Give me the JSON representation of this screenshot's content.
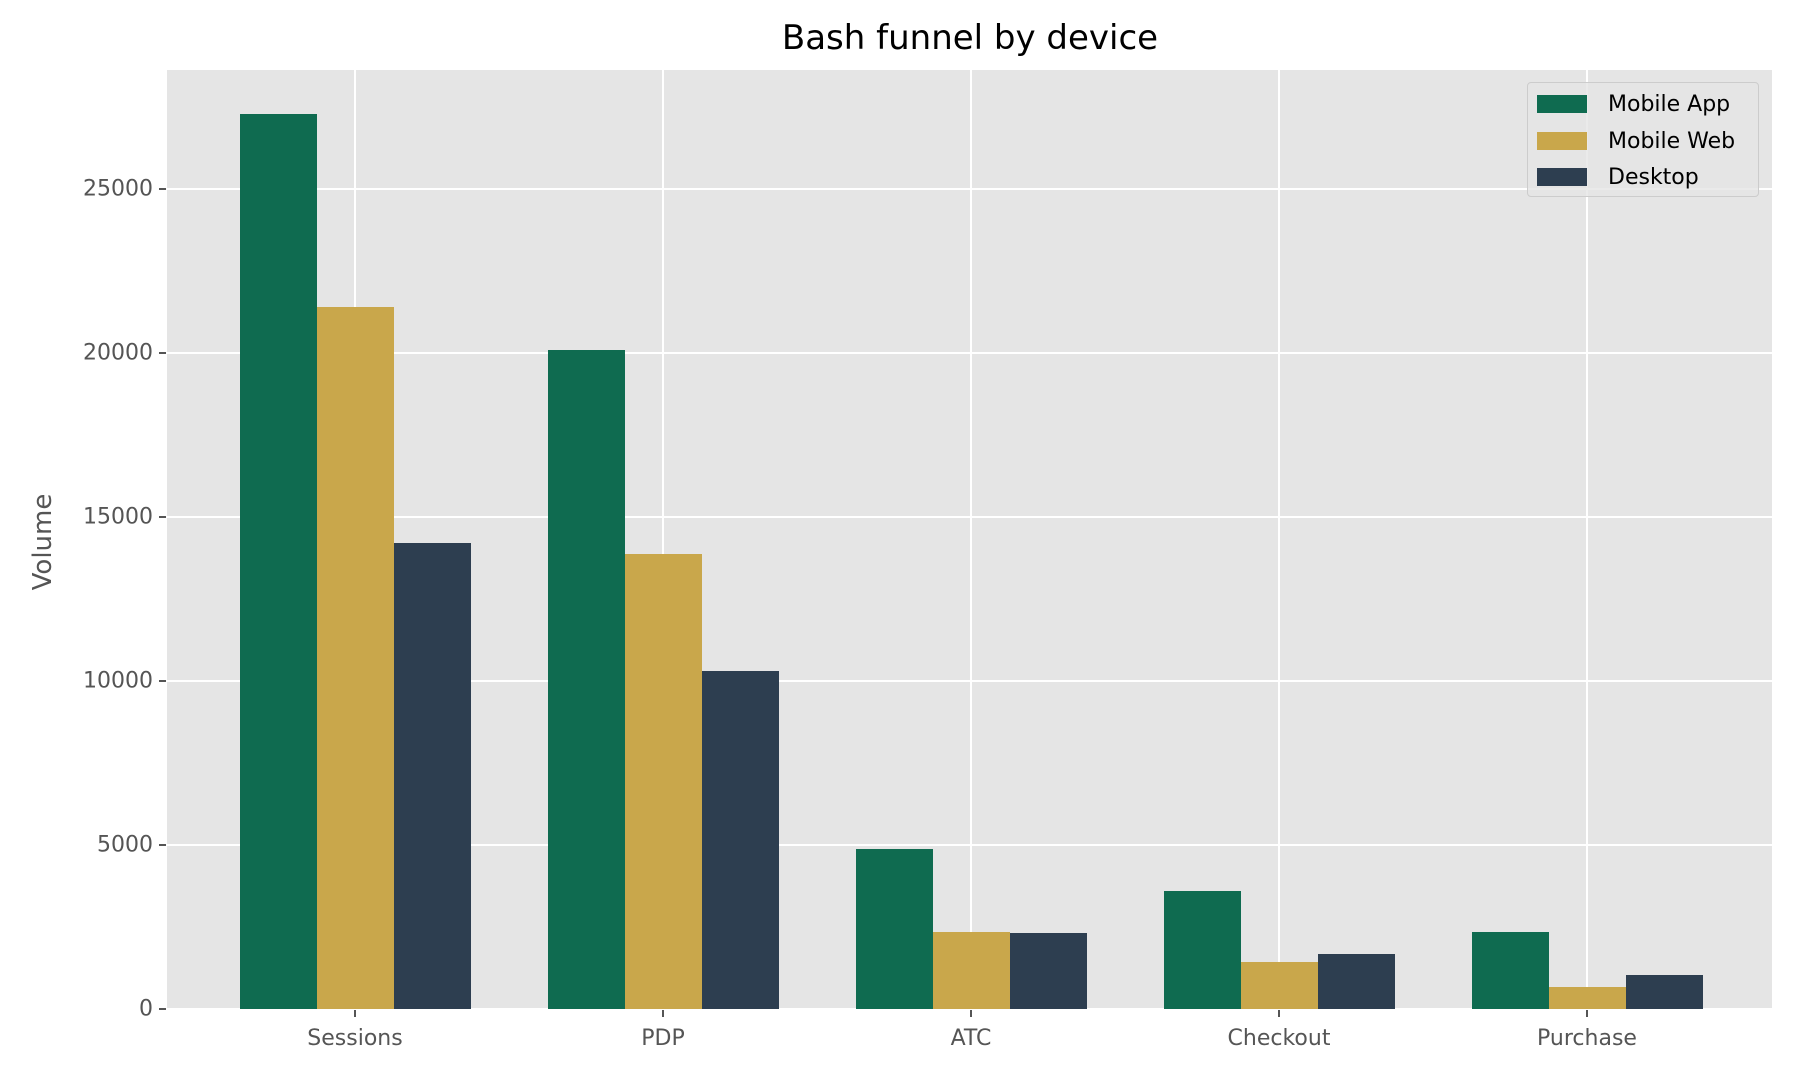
{
  "chart_data": {
    "type": "bar",
    "title": "Bash funnel by device",
    "xlabel": "",
    "ylabel": "Volume",
    "categories": [
      "Sessions",
      "PDP",
      "ATC",
      "Checkout",
      "Purchase"
    ],
    "series": [
      {
        "name": "Mobile App",
        "color": "#0f6b50",
        "values": [
          27290,
          20090,
          4880,
          3600,
          2350
        ]
      },
      {
        "name": "Mobile Web",
        "color": "#c9a74b",
        "values": [
          21400,
          13870,
          2350,
          1430,
          670
        ]
      },
      {
        "name": "Desktop",
        "color": "#2d3e50",
        "values": [
          14210,
          10300,
          2320,
          1680,
          1040
        ]
      }
    ],
    "yticks": [
      0,
      5000,
      10000,
      15000,
      20000,
      25000
    ],
    "ytick_labels": [
      "0",
      "5000",
      "10000",
      "15000",
      "20000",
      "25000"
    ],
    "ylim": [
      0,
      28630
    ],
    "grid": true,
    "legend_position": "upper right",
    "background": "#e5e5e5"
  }
}
